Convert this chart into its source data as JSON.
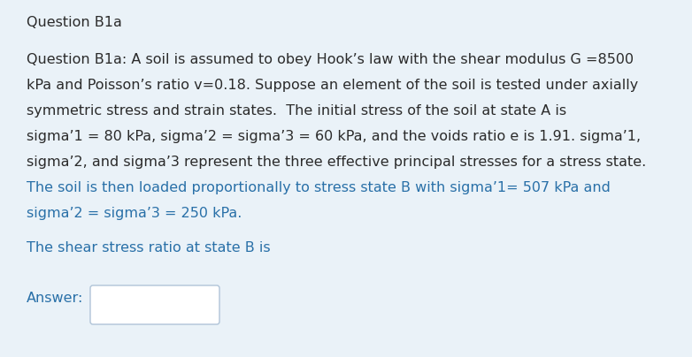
{
  "background_color": "#eaf2f8",
  "title": "Question B1a",
  "title_fontsize": 11.5,
  "body_color": "#2b2b2b",
  "highlight_color": "#2970a8",
  "body_fontsize": 11.5,
  "line1": "Question B1a: A soil is assumed to obey Hook’s law with the shear modulus G =8500",
  "line2": "kPa and Poisson’s ratio v=0.18. Suppose an element of the soil is tested under axially",
  "line3": "symmetric stress and strain states.  The initial stress of the soil at state A is",
  "line4": "sigma’1 = 80 kPa, sigma’2 = sigma’3 = 60 kPa, and the voids ratio e is 1.91. sigma’1,",
  "line5": "sigma’2, and sigma’3 represent the three effective principal stresses for a stress state.",
  "line6": "The soil is then loaded proportionally to stress state B with sigma’1= 507 kPa and",
  "line7": "sigma’2 = sigma’3 = 250 kPa.",
  "question_line": "The shear stress ratio at state B is",
  "answer_label": "Answer:",
  "fig_width": 7.82,
  "fig_height": 4.04,
  "dpi": 100
}
